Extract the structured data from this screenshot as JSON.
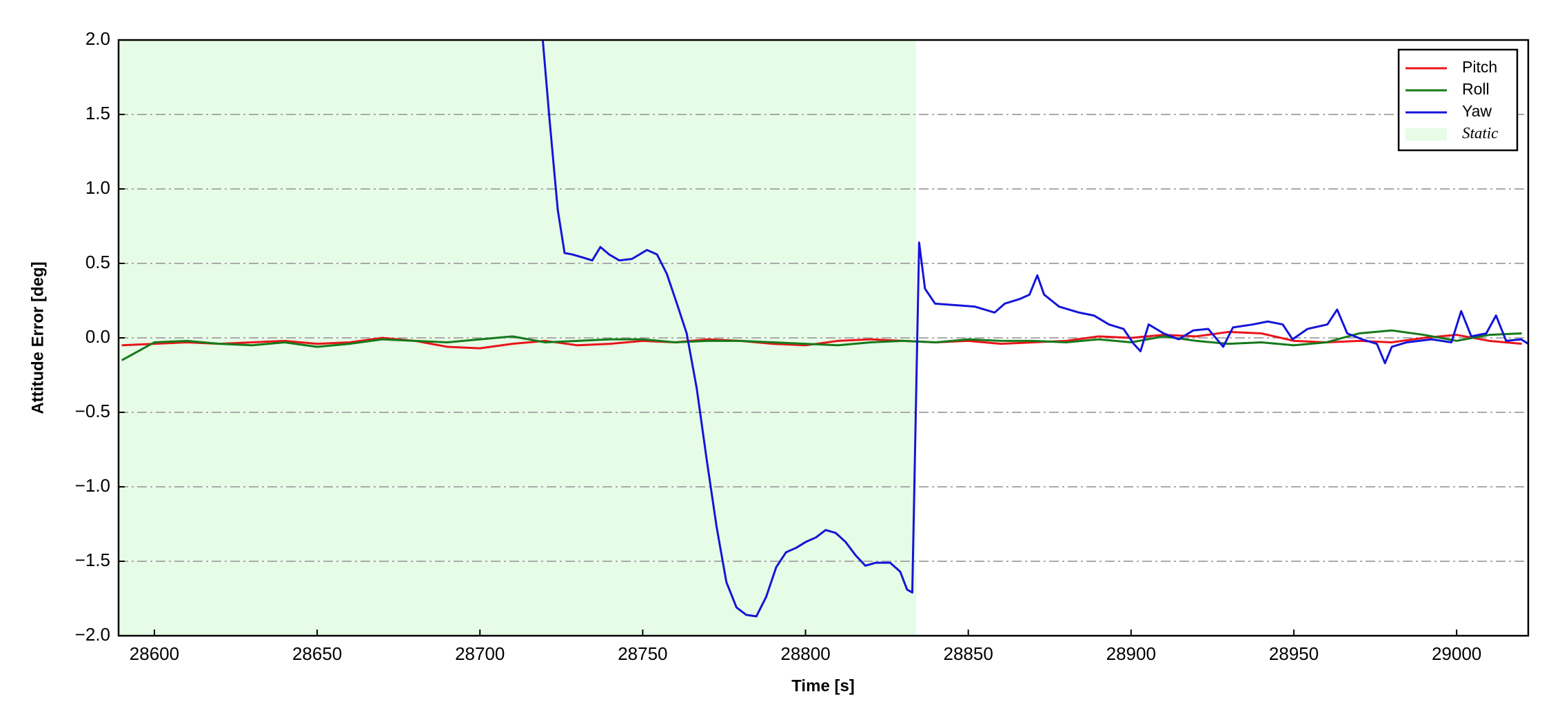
{
  "chart_data": {
    "type": "line",
    "xlabel": "Time [s]",
    "ylabel": "Attitude Error [deg]",
    "xlim": [
      28589,
      29022
    ],
    "xticks": [
      28600,
      28650,
      28700,
      28750,
      28800,
      28850,
      28900,
      28950,
      29000
    ],
    "ylim": [
      -2.0,
      2.0
    ],
    "yticks": [
      {
        "value": -2.0,
        "label": "−2.0"
      },
      {
        "value": -1.5,
        "label": "−1.5"
      },
      {
        "value": -1.0,
        "label": "−1.0"
      },
      {
        "value": -0.5,
        "label": "−0.5"
      },
      {
        "value": 0.0,
        "label": "0.0"
      },
      {
        "value": 0.5,
        "label": "0.5"
      },
      {
        "value": 1.0,
        "label": "1.0"
      },
      {
        "value": 1.5,
        "label": "1.5"
      },
      {
        "value": 2.0,
        "label": "2.0"
      }
    ],
    "grid": true,
    "legend": "upper right",
    "shaded_regions": [
      {
        "name": "Static",
        "color": "#e6fce6",
        "start": 28589,
        "end": 28834
      }
    ],
    "series": [
      {
        "name": "Pitch",
        "color": "#e8141a",
        "x": [
          28590,
          28600,
          28610,
          28620,
          28630,
          28640,
          28650,
          28660,
          28670,
          28680,
          28690,
          28700,
          28710,
          28720,
          28730,
          28740,
          28750,
          28760,
          28770,
          28780,
          28790,
          28800,
          28810,
          28820,
          28830,
          28840,
          28850,
          28860,
          28870,
          28880,
          28890,
          28900,
          28910,
          28920,
          28930,
          28940,
          28950,
          28960,
          28970,
          28980,
          28990,
          29000,
          29010,
          29020
        ],
        "values": [
          -0.05,
          -0.04,
          -0.03,
          -0.04,
          -0.03,
          -0.02,
          -0.04,
          -0.03,
          0.0,
          -0.02,
          -0.06,
          -0.07,
          -0.04,
          -0.02,
          -0.05,
          -0.04,
          -0.02,
          -0.03,
          -0.01,
          -0.02,
          -0.04,
          -0.05,
          -0.02,
          -0.01,
          -0.02,
          -0.03,
          -0.02,
          -0.04,
          -0.03,
          -0.02,
          0.01,
          0.0,
          0.02,
          0.01,
          0.04,
          0.03,
          -0.02,
          -0.03,
          -0.02,
          -0.03,
          0.0,
          0.02,
          -0.02,
          -0.04
        ]
      },
      {
        "name": "Roll",
        "color": "#15791a",
        "x": [
          28590,
          28600,
          28610,
          28620,
          28630,
          28640,
          28650,
          28660,
          28670,
          28680,
          28690,
          28700,
          28710,
          28720,
          28730,
          28740,
          28750,
          28760,
          28770,
          28780,
          28790,
          28800,
          28810,
          28820,
          28830,
          28840,
          28850,
          28860,
          28870,
          28880,
          28890,
          28900,
          28910,
          28920,
          28930,
          28940,
          28950,
          28960,
          28970,
          28980,
          28990,
          29000,
          29010,
          29020
        ],
        "values": [
          -0.15,
          -0.03,
          -0.02,
          -0.04,
          -0.05,
          -0.03,
          -0.06,
          -0.04,
          -0.01,
          -0.02,
          -0.03,
          -0.01,
          0.01,
          -0.03,
          -0.02,
          -0.01,
          -0.01,
          -0.03,
          -0.02,
          -0.02,
          -0.03,
          -0.04,
          -0.05,
          -0.03,
          -0.02,
          -0.03,
          -0.01,
          -0.02,
          -0.02,
          -0.03,
          -0.01,
          -0.03,
          0.01,
          -0.02,
          -0.04,
          -0.03,
          -0.05,
          -0.03,
          0.03,
          0.05,
          0.02,
          -0.02,
          0.02,
          0.03
        ]
      },
      {
        "name": "Yaw",
        "color": "#1414d8",
        "x": [
          28719.3,
          28721.4,
          28723.9,
          28726,
          28728.4,
          28731.5,
          28734.5,
          28737,
          28739.7,
          28742.8,
          28746.7,
          28751.3,
          28754.4,
          28757.4,
          28760.5,
          28763.5,
          28766.6,
          28769.6,
          28772.7,
          28775.7,
          28778.8,
          28781.8,
          28784.9,
          28787.9,
          28791,
          28794,
          28797.1,
          28800.1,
          28803.2,
          28806.2,
          28809.3,
          28812.3,
          28815.4,
          28818.4,
          28821.5,
          28826,
          28829.1,
          28831.2,
          28832.8,
          28834.9,
          28836.7,
          28839.8,
          28845.9,
          28852,
          28858.1,
          28861.2,
          28865.7,
          28868.8,
          28871.2,
          28873.3,
          28877.9,
          28884,
          28888.6,
          28893.2,
          28897.7,
          28900.8,
          28902.9,
          28905.4,
          28910,
          28914.6,
          28919.1,
          28923.7,
          28928.3,
          28931.3,
          28937.4,
          28942,
          28946.6,
          28949.6,
          28954.2,
          28960.3,
          28963.3,
          28966.4,
          28971,
          28975.5,
          28978,
          28980.1,
          28984.7,
          28992.3,
          28998.4,
          29001.4,
          29004.5,
          29009.1,
          29012.1,
          29015.2,
          29019.8,
          29022
        ],
        "values": [
          2.0,
          1.46,
          0.86,
          0.57,
          0.56,
          0.54,
          0.52,
          0.61,
          0.56,
          0.52,
          0.53,
          0.59,
          0.56,
          0.43,
          0.23,
          0.03,
          -0.34,
          -0.81,
          -1.27,
          -1.64,
          -1.81,
          -1.86,
          -1.87,
          -1.74,
          -1.54,
          -1.44,
          -1.41,
          -1.37,
          -1.34,
          -1.29,
          -1.31,
          -1.37,
          -1.46,
          -1.53,
          -1.51,
          -1.51,
          -1.57,
          -1.69,
          -1.71,
          0.64,
          0.33,
          0.23,
          0.22,
          0.21,
          0.17,
          0.23,
          0.26,
          0.29,
          0.42,
          0.29,
          0.21,
          0.17,
          0.15,
          0.09,
          0.06,
          -0.04,
          -0.09,
          0.09,
          0.03,
          -0.01,
          0.05,
          0.06,
          -0.06,
          0.07,
          0.09,
          0.11,
          0.09,
          -0.01,
          0.06,
          0.09,
          0.19,
          0.03,
          -0.01,
          -0.04,
          -0.17,
          -0.06,
          -0.03,
          -0.01,
          -0.03,
          0.18,
          0.01,
          0.03,
          0.15,
          -0.02,
          -0.01,
          -0.04
        ]
      }
    ]
  }
}
